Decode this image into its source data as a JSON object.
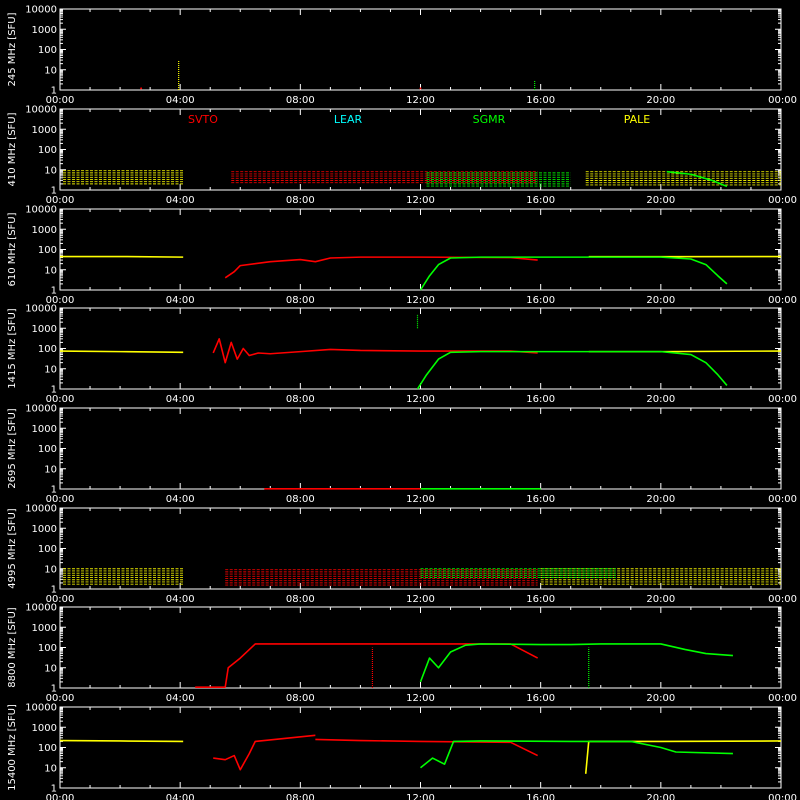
{
  "chart_data": [
    {
      "type": "scatter",
      "ylabel": "245 MHz [SFU]",
      "yscale": "log",
      "ylim": [
        1,
        10000
      ],
      "yticks": [
        "1",
        "10",
        "100",
        "1000",
        "10000"
      ],
      "xlim": [
        "00:00",
        "24:00"
      ],
      "xticks": [
        "00:00",
        "04:00",
        "08:00",
        "12:00",
        "16:00",
        "20:00",
        "00:00"
      ],
      "legend": [],
      "series": [
        {
          "name": "",
          "color": "#ffff00",
          "style": "spike",
          "points": [
            [
              3.95,
              1
            ],
            [
              3.95,
              30
            ]
          ]
        },
        {
          "name": "",
          "color": "#00ff00",
          "style": "spike",
          "points": [
            [
              15.8,
              1
            ],
            [
              15.8,
              3
            ]
          ]
        },
        {
          "name": "",
          "color": "#ff0000",
          "style": "dots",
          "points": [
            [
              12.0,
              1.2
            ],
            [
              2.7,
              1.2
            ]
          ]
        }
      ]
    },
    {
      "type": "scatter",
      "ylabel": "410 MHz [SFU]",
      "yscale": "log",
      "ylim": [
        1,
        10000
      ],
      "yticks": [
        "1",
        "10",
        "100",
        "1000",
        "10000"
      ],
      "xlim": [
        "00:00",
        "24:00"
      ],
      "xticks": [
        "00:00",
        "04:00",
        "08:00",
        "12:00",
        "16:00",
        "20:00",
        "00:00"
      ],
      "legend": [
        {
          "label": "SVTO",
          "color": "#ff0000"
        },
        {
          "label": "LEAR",
          "color": "#00ffff"
        },
        {
          "label": "SGMR",
          "color": "#00ff00"
        },
        {
          "label": "PALE",
          "color": "#ffff00"
        }
      ],
      "series": [
        {
          "name": "SVTO",
          "color": "#ff0000",
          "style": "band",
          "points": [
            [
              5.7,
              2
            ],
            [
              5.7,
              8
            ],
            [
              15.9,
              8
            ],
            [
              15.9,
              2
            ]
          ]
        },
        {
          "name": "SGMR",
          "color": "#00ff00",
          "style": "band",
          "points": [
            [
              12.2,
              1.5
            ],
            [
              12.2,
              7
            ],
            [
              17.0,
              7
            ],
            [
              17.0,
              1.5
            ]
          ]
        },
        {
          "name": "PALE",
          "color": "#ffff00",
          "style": "band",
          "points": [
            [
              0.1,
              2
            ],
            [
              0.1,
              9
            ],
            [
              4.1,
              9
            ],
            [
              4.1,
              2
            ]
          ]
        },
        {
          "name": "PALE",
          "color": "#ffff00",
          "style": "band",
          "points": [
            [
              17.5,
              1.5
            ],
            [
              17.5,
              8
            ],
            [
              24.0,
              8
            ],
            [
              24.0,
              1.5
            ]
          ]
        },
        {
          "name": "SGMR",
          "color": "#00ff00",
          "style": "line",
          "points": [
            [
              20.2,
              8
            ],
            [
              21.0,
              6
            ],
            [
              21.7,
              3
            ],
            [
              22.2,
              1.5
            ]
          ]
        }
      ]
    },
    {
      "type": "line",
      "ylabel": "610 MHz [SFU]",
      "yscale": "log",
      "ylim": [
        1,
        10000
      ],
      "yticks": [
        "1",
        "10",
        "100",
        "1000",
        "10000"
      ],
      "xlim": [
        "00:00",
        "24:00"
      ],
      "xticks": [
        "00:00",
        "04:00",
        "08:00",
        "12:00",
        "16:00",
        "20:00",
        "00:00"
      ],
      "legend": [],
      "series": [
        {
          "name": "PALE",
          "color": "#ffff00",
          "style": "line",
          "points": [
            [
              0.0,
              45
            ],
            [
              2.0,
              45
            ],
            [
              4.1,
              42
            ]
          ]
        },
        {
          "name": "PALE",
          "color": "#ffff00",
          "style": "line",
          "points": [
            [
              17.6,
              44
            ],
            [
              20.0,
              44
            ],
            [
              24.0,
              45
            ]
          ]
        },
        {
          "name": "SVTO",
          "color": "#ff0000",
          "style": "line",
          "points": [
            [
              5.5,
              4
            ],
            [
              5.8,
              8
            ],
            [
              6.0,
              16
            ],
            [
              7.0,
              25
            ],
            [
              8.0,
              32
            ],
            [
              8.5,
              25
            ],
            [
              9.0,
              38
            ],
            [
              10.0,
              42
            ],
            [
              12.0,
              42
            ],
            [
              15.0,
              40
            ],
            [
              15.9,
              30
            ]
          ]
        },
        {
          "name": "SGMR",
          "color": "#00ff00",
          "style": "line",
          "points": [
            [
              12.0,
              1
            ],
            [
              12.3,
              5
            ],
            [
              12.6,
              18
            ],
            [
              13.0,
              38
            ],
            [
              14.0,
              42
            ],
            [
              16.0,
              42
            ],
            [
              17.0,
              42
            ],
            [
              18.0,
              42
            ],
            [
              20.0,
              42
            ],
            [
              21.0,
              34
            ],
            [
              21.5,
              18
            ],
            [
              21.9,
              5
            ],
            [
              22.2,
              2
            ]
          ]
        }
      ]
    },
    {
      "type": "line",
      "ylabel": "1415 MHz [SFU]",
      "yscale": "log",
      "ylim": [
        1,
        10000
      ],
      "yticks": [
        "1",
        "10",
        "100",
        "1000",
        "10000"
      ],
      "xlim": [
        "00:00",
        "24:00"
      ],
      "xticks": [
        "00:00",
        "04:00",
        "08:00",
        "12:00",
        "16:00",
        "20:00",
        "00:00"
      ],
      "legend": [],
      "series": [
        {
          "name": "PALE",
          "color": "#ffff00",
          "style": "line",
          "points": [
            [
              0.0,
              75
            ],
            [
              2.0,
              70
            ],
            [
              4.1,
              65
            ]
          ]
        },
        {
          "name": "PALE",
          "color": "#ffff00",
          "style": "line",
          "points": [
            [
              17.6,
              70
            ],
            [
              20.0,
              70
            ],
            [
              24.0,
              75
            ]
          ]
        },
        {
          "name": "SVTO",
          "color": "#ff0000",
          "style": "line",
          "points": [
            [
              5.1,
              60
            ],
            [
              5.3,
              300
            ],
            [
              5.5,
              20
            ],
            [
              5.7,
              200
            ],
            [
              5.9,
              30
            ],
            [
              6.1,
              100
            ],
            [
              6.3,
              45
            ],
            [
              6.6,
              60
            ],
            [
              7.0,
              55
            ],
            [
              8.0,
              70
            ],
            [
              9.0,
              90
            ],
            [
              10.0,
              80
            ],
            [
              12.0,
              75
            ],
            [
              15.0,
              75
            ],
            [
              15.9,
              60
            ]
          ]
        },
        {
          "name": "SGMR",
          "color": "#00ff00",
          "style": "line",
          "points": [
            [
              11.9,
              1
            ],
            [
              12.2,
              5
            ],
            [
              12.6,
              30
            ],
            [
              13.0,
              65
            ],
            [
              14.0,
              70
            ],
            [
              17.0,
              70
            ],
            [
              18.0,
              70
            ],
            [
              20.0,
              70
            ],
            [
              21.0,
              50
            ],
            [
              21.5,
              20
            ],
            [
              21.9,
              5
            ],
            [
              22.2,
              1.5
            ]
          ]
        },
        {
          "name": "SGMR",
          "color": "#00ff00",
          "style": "spike",
          "points": [
            [
              11.9,
              1000
            ],
            [
              11.9,
              5000
            ]
          ]
        }
      ]
    },
    {
      "type": "line",
      "ylabel": "2695 MHz [SFU]",
      "yscale": "log",
      "ylim": [
        1,
        10000
      ],
      "yticks": [
        "1",
        "10",
        "100",
        "1000",
        "10000"
      ],
      "xlim": [
        "00:00",
        "24:00"
      ],
      "xticks": [
        "00:00",
        "04:00",
        "08:00",
        "12:00",
        "16:00",
        "20:00",
        "00:00"
      ],
      "legend": [],
      "series": [
        {
          "name": "SVTO",
          "color": "#ff0000",
          "style": "line",
          "points": [
            [
              6.8,
              1.02
            ],
            [
              12.0,
              1.02
            ]
          ]
        },
        {
          "name": "SGMR",
          "color": "#00ff00",
          "style": "line",
          "points": [
            [
              12.0,
              1.02
            ],
            [
              16.0,
              1.02
            ]
          ]
        }
      ]
    },
    {
      "type": "scatter",
      "ylabel": "4995 MHz [SFU]",
      "yscale": "log",
      "ylim": [
        1,
        10000
      ],
      "yticks": [
        "1",
        "10",
        "100",
        "1000",
        "10000"
      ],
      "xlim": [
        "00:00",
        "24:00"
      ],
      "xticks": [
        "00:00",
        "04:00",
        "08:00",
        "12:00",
        "16:00",
        "20:00",
        "00:00"
      ],
      "legend": [],
      "series": [
        {
          "name": "PALE",
          "color": "#ffff00",
          "style": "band",
          "points": [
            [
              0.1,
              1.5
            ],
            [
              0.1,
              10
            ],
            [
              4.1,
              10
            ],
            [
              4.1,
              1.5
            ]
          ]
        },
        {
          "name": "PALE",
          "color": "#ffff00",
          "style": "band",
          "points": [
            [
              16.0,
              1.5
            ],
            [
              16.0,
              10
            ],
            [
              24.0,
              10
            ],
            [
              24.0,
              1.5
            ]
          ]
        },
        {
          "name": "SVTO",
          "color": "#ff0000",
          "style": "band",
          "points": [
            [
              5.5,
              1.5
            ],
            [
              5.5,
              9
            ],
            [
              15.9,
              9
            ],
            [
              15.9,
              1.5
            ]
          ]
        },
        {
          "name": "SGMR",
          "color": "#00ff00",
          "style": "band",
          "points": [
            [
              12.0,
              3
            ],
            [
              12.0,
              10
            ],
            [
              18.5,
              10
            ],
            [
              18.5,
              3
            ]
          ]
        }
      ]
    },
    {
      "type": "line",
      "ylabel": "8800 MHz [SFU]",
      "yscale": "log",
      "ylim": [
        1,
        10000
      ],
      "yticks": [
        "1",
        "10",
        "100",
        "1000",
        "10000"
      ],
      "xlim": [
        "00:00",
        "24:00"
      ],
      "xticks": [
        "00:00",
        "04:00",
        "08:00",
        "12:00",
        "16:00",
        "20:00",
        "00:00"
      ],
      "legend": [],
      "series": [
        {
          "name": "SVTO",
          "color": "#ff0000",
          "style": "line",
          "points": [
            [
              4.5,
              1.1
            ],
            [
              5.5,
              1.1
            ],
            [
              5.6,
              10
            ],
            [
              6.0,
              30
            ],
            [
              6.5,
              150
            ],
            [
              8.0,
              150
            ],
            [
              10.0,
              150
            ],
            [
              12.0,
              150
            ],
            [
              15.0,
              150
            ],
            [
              15.9,
              30
            ]
          ]
        },
        {
          "name": "SGMR",
          "color": "#00ff00",
          "style": "line",
          "points": [
            [
              12.0,
              2
            ],
            [
              12.3,
              30
            ],
            [
              12.6,
              10
            ],
            [
              13.0,
              60
            ],
            [
              13.5,
              130
            ],
            [
              14.0,
              150
            ],
            [
              16.0,
              140
            ],
            [
              17.0,
              140
            ],
            [
              18.0,
              150
            ],
            [
              20.0,
              150
            ],
            [
              20.8,
              80
            ],
            [
              21.5,
              50
            ],
            [
              22.4,
              40
            ]
          ]
        },
        {
          "name": "SVTO",
          "color": "#ff0000",
          "style": "spike",
          "points": [
            [
              10.4,
              1
            ],
            [
              10.4,
              100
            ]
          ]
        },
        {
          "name": "SGMR",
          "color": "#00ff00",
          "style": "spike",
          "points": [
            [
              17.6,
              1
            ],
            [
              17.6,
              100
            ]
          ]
        }
      ]
    },
    {
      "type": "line",
      "ylabel": "15400 MHz [SFU]",
      "yscale": "log",
      "ylim": [
        1,
        10000
      ],
      "yticks": [
        "1",
        "10",
        "100",
        "1000",
        "10000"
      ],
      "xlim": [
        "00:00",
        "24:00"
      ],
      "xticks": [
        "00:00",
        "04:00",
        "08:00",
        "12:00",
        "16:00",
        "20:00",
        "00:00"
      ],
      "legend": [],
      "series": [
        {
          "name": "PALE",
          "color": "#ffff00",
          "style": "line",
          "points": [
            [
              0.0,
              220
            ],
            [
              2.0,
              210
            ],
            [
              4.1,
              200
            ]
          ]
        },
        {
          "name": "PALE",
          "color": "#ffff00",
          "style": "line",
          "points": [
            [
              17.5,
              5
            ],
            [
              17.6,
              200
            ],
            [
              20.0,
              200
            ],
            [
              24.0,
              210
            ]
          ]
        },
        {
          "name": "SVTO",
          "color": "#ff0000",
          "style": "line",
          "points": [
            [
              5.1,
              30
            ],
            [
              5.5,
              25
            ],
            [
              5.8,
              40
            ],
            [
              6.0,
              8
            ],
            [
              6.3,
              50
            ],
            [
              6.5,
              200
            ],
            [
              8.5,
              400
            ]
          ]
        },
        {
          "name": "SVTO",
          "color": "#ff0000",
          "style": "line",
          "points": [
            [
              8.5,
              250
            ],
            [
              10.0,
              220
            ],
            [
              12.0,
              200
            ],
            [
              15.0,
              180
            ],
            [
              15.9,
              40
            ]
          ]
        },
        {
          "name": "SGMR",
          "color": "#00ff00",
          "style": "line",
          "points": [
            [
              12.0,
              10
            ],
            [
              12.4,
              30
            ],
            [
              12.8,
              15
            ],
            [
              13.1,
              200
            ],
            [
              14.0,
              210
            ],
            [
              17.0,
              200
            ],
            [
              19.0,
              200
            ],
            [
              20.0,
              100
            ],
            [
              20.5,
              60
            ],
            [
              22.4,
              50
            ]
          ]
        }
      ]
    }
  ]
}
